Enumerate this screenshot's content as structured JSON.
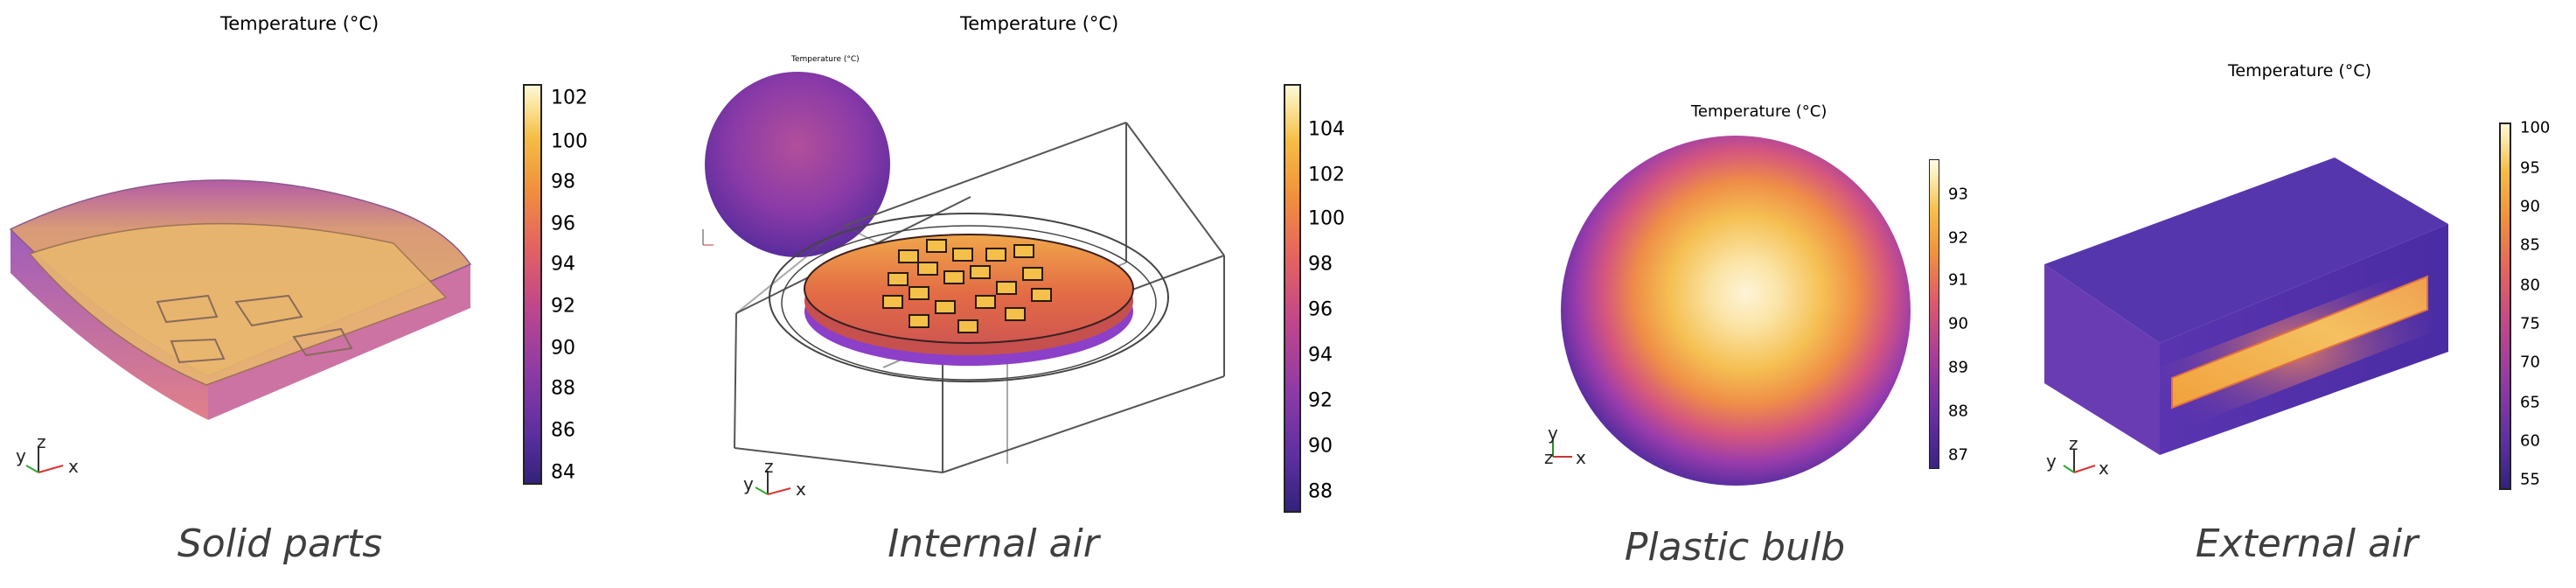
{
  "panels": [
    {
      "caption": "Solid parts",
      "title": "Temperature (°C)",
      "colorbar_ticks": [
        "102",
        "100",
        "98",
        "96",
        "94",
        "92",
        "90",
        "88",
        "86",
        "84"
      ],
      "axes": {
        "y": "y",
        "z": "z",
        "x": "x"
      }
    },
    {
      "caption": "Internal air",
      "title": "Temperature (°C)",
      "inset_title": "Temperature (°C)",
      "colorbar_ticks": [
        "104",
        "102",
        "100",
        "98",
        "96",
        "94",
        "92",
        "90",
        "88"
      ],
      "axes": {
        "y": "y",
        "z": "z",
        "x": "x"
      }
    },
    {
      "caption": "Plastic bulb",
      "title": "Temperature (°C)",
      "colorbar_ticks": [
        "93",
        "92",
        "91",
        "90",
        "89",
        "88",
        "87"
      ],
      "axes": {
        "y": "y",
        "z": "z",
        "x": "x"
      }
    },
    {
      "caption": "External air",
      "title": "Temperature (°C)",
      "colorbar_ticks": [
        "100",
        "95",
        "90",
        "85",
        "80",
        "75",
        "70",
        "65",
        "60",
        "55"
      ],
      "axes": {
        "y": "y",
        "z": "z",
        "x": "x"
      }
    }
  ],
  "colors": {
    "hot": "#fdf3c4",
    "warm": "#f2a23c",
    "mid": "#d9547a",
    "cool": "#6a34a8",
    "cold": "#35237d"
  }
}
